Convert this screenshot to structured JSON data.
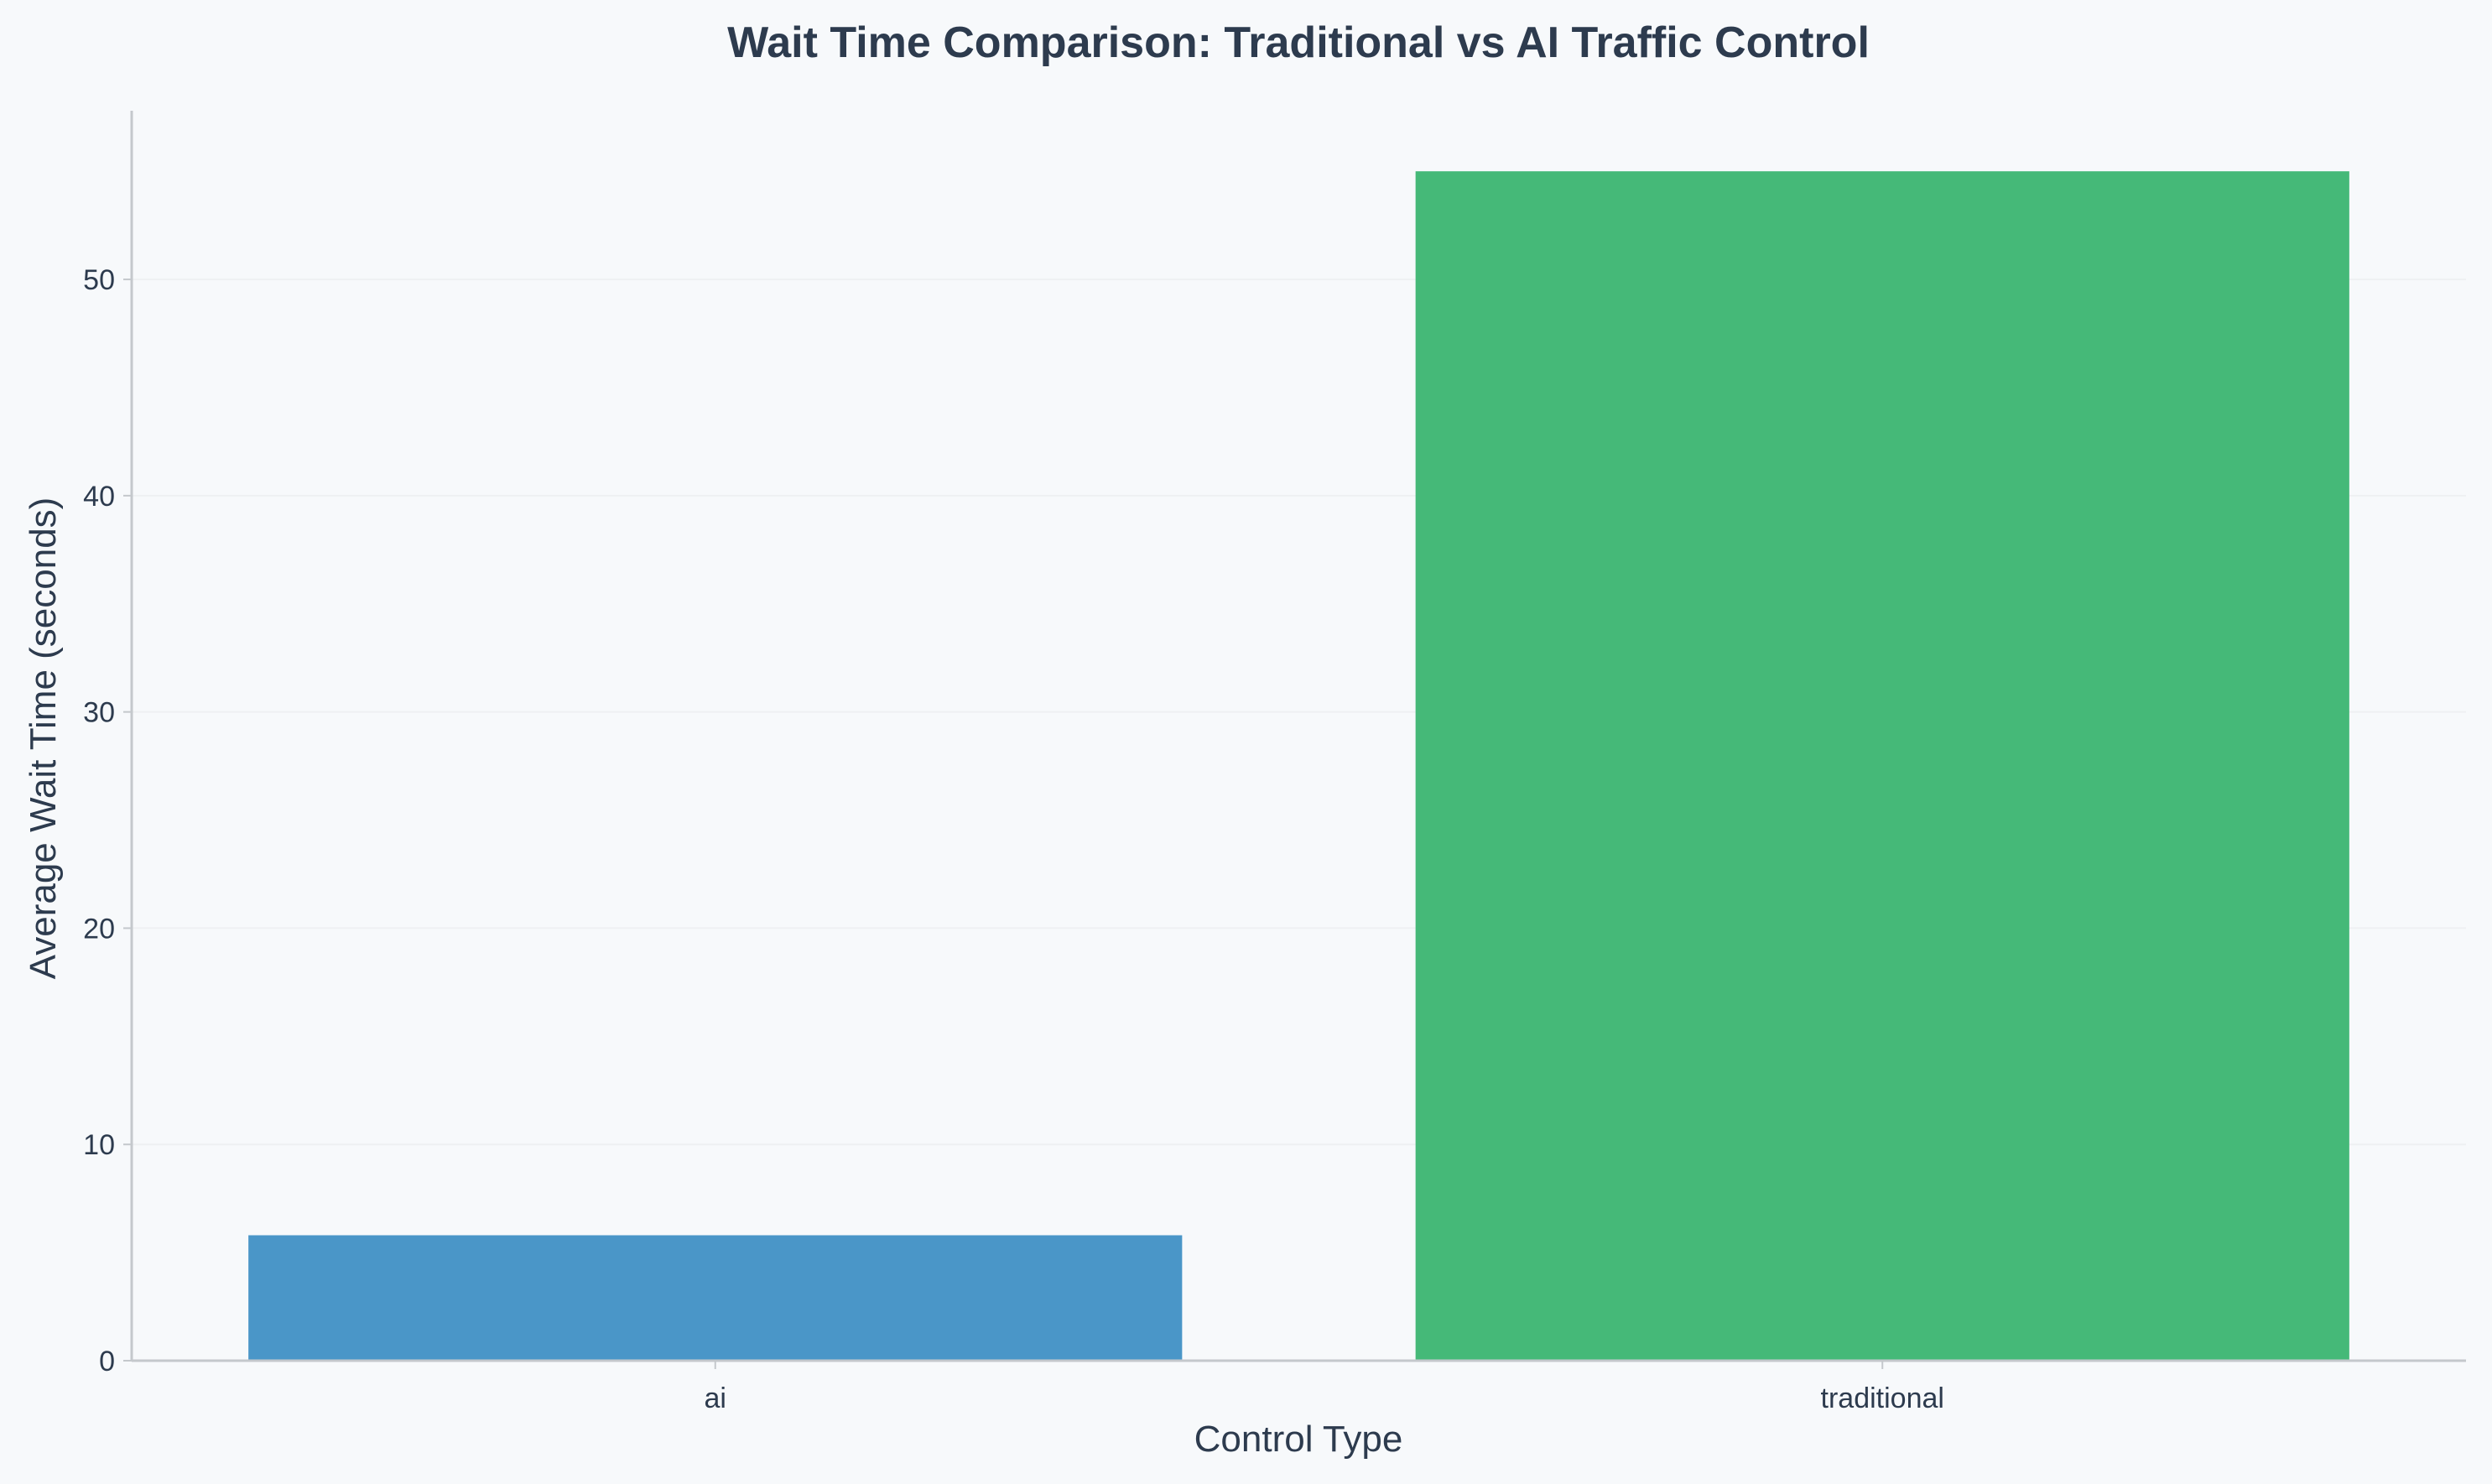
{
  "chart_data": {
    "type": "bar",
    "title": "Wait Time Comparison: Traditional vs AI Traffic Control",
    "xlabel": "Control Type",
    "ylabel": "Average Wait Time (seconds)",
    "categories": [
      "ai",
      "traditional"
    ],
    "values": [
      5.8,
      55.0
    ],
    "ylim": [
      0,
      57.8
    ],
    "yticks": [
      0,
      10,
      20,
      30,
      40,
      50
    ],
    "grid": true,
    "legend": "none",
    "colors": {
      "bars": [
        "#4a96c8",
        "#45b978"
      ],
      "axis": "#c4c8cc",
      "grid": "#eef0f2",
      "text": "#2d3b4e",
      "background": "#f7f9fb"
    }
  }
}
